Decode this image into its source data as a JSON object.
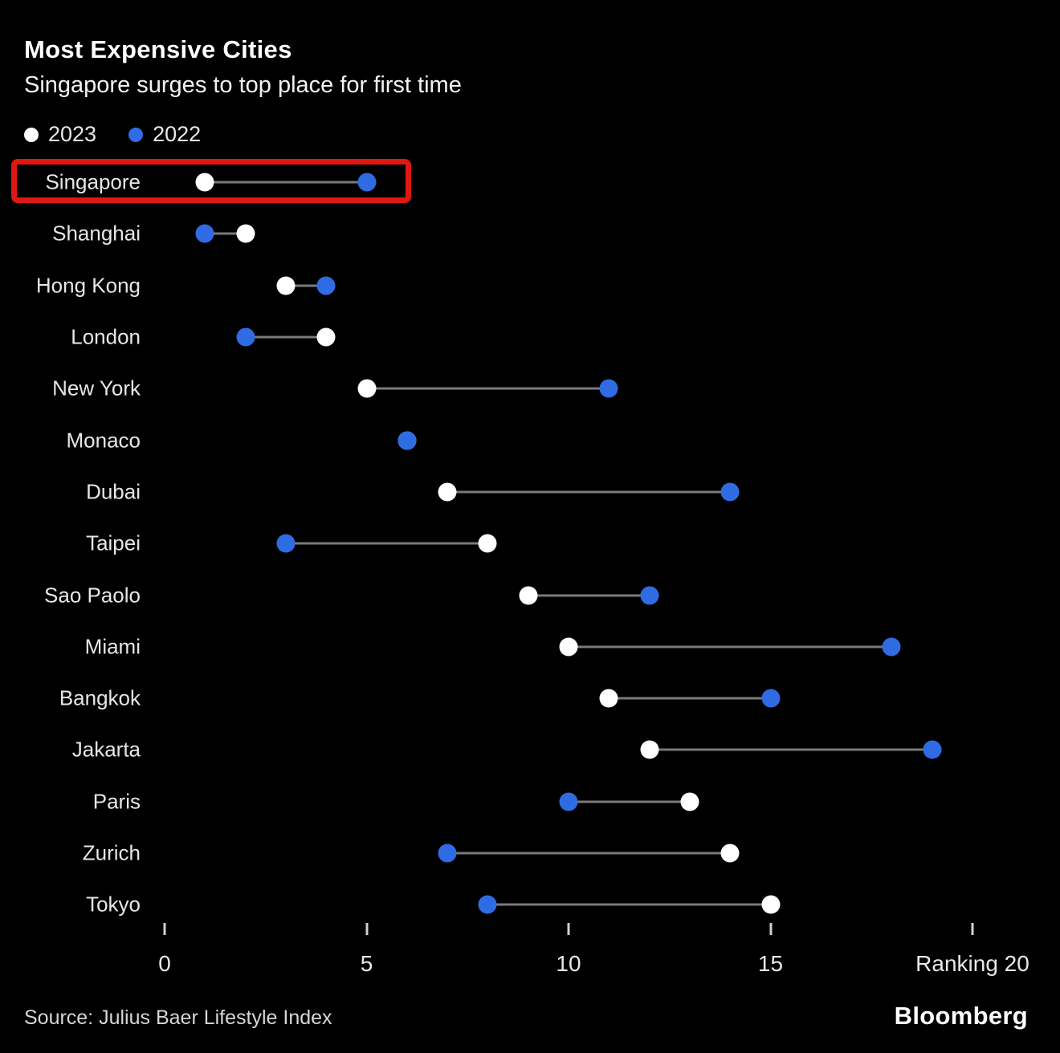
{
  "header": {
    "title": "Most Expensive Cities",
    "subtitle": "Singapore surges to top place for first time"
  },
  "footer": {
    "source": "Source: Julius Baer Lifestyle Index",
    "brand": "Bloomberg"
  },
  "chart_data": {
    "type": "scatter",
    "subtype": "dumbbell",
    "title": "Most Expensive Cities",
    "subtitle": "Singapore surges to top place for first time",
    "legend": [
      {
        "label": "2023",
        "color": "#ffffff"
      },
      {
        "label": "2022",
        "color": "#2f6ce4"
      }
    ],
    "legend_position": "top-left",
    "grid": false,
    "xlim": [
      0,
      20
    ],
    "xticks": [
      {
        "value": 0,
        "label": "0"
      },
      {
        "value": 5,
        "label": "5"
      },
      {
        "value": 10,
        "label": "10"
      },
      {
        "value": 15,
        "label": "15"
      },
      {
        "value": 20,
        "label": "Ranking 20"
      }
    ],
    "categories": [
      "Singapore",
      "Shanghai",
      "Hong Kong",
      "London",
      "New York",
      "Monaco",
      "Dubai",
      "Taipei",
      "Sao Paolo",
      "Miami",
      "Bangkok",
      "Jakarta",
      "Paris",
      "Zurich",
      "Tokyo"
    ],
    "series": [
      {
        "name": "2023",
        "color": "#ffffff",
        "values": [
          1,
          2,
          3,
          4,
          5,
          6,
          7,
          8,
          9,
          10,
          11,
          12,
          13,
          14,
          15
        ]
      },
      {
        "name": "2022",
        "color": "#2f6ce4",
        "values": [
          5,
          1,
          4,
          2,
          11,
          6,
          14,
          3,
          12,
          18,
          15,
          19,
          10,
          7,
          8
        ]
      }
    ],
    "connector_color": "#7a7a7a",
    "highlight": {
      "category": "Singapore",
      "color": "#e01812"
    }
  }
}
